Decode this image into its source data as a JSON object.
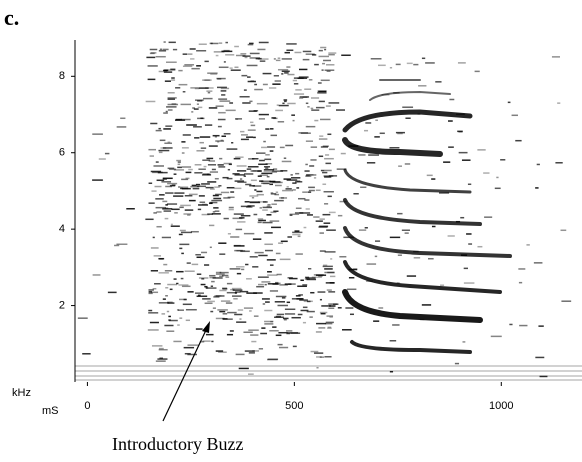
{
  "chart_data": {
    "type": "spectrogram",
    "panel_label": "c.",
    "y_label": "kHz",
    "x_label": "mS",
    "annotation": "Introductory Buzz",
    "xlim": [
      -30,
      1195
    ],
    "ylim": [
      0,
      8.95
    ],
    "xticks": [
      0,
      500,
      1000
    ],
    "yticks": [
      2,
      4,
      6,
      8
    ]
  }
}
